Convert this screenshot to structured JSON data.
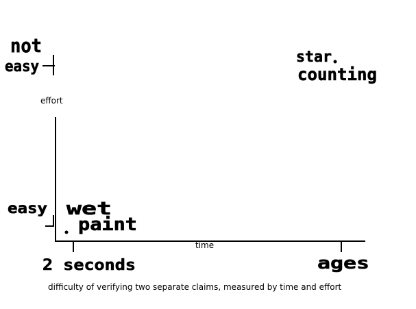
{
  "chart_data": {
    "type": "scatter",
    "title": "",
    "caption": "difficulty of verifying two separate claims, measured by time and effort",
    "xlabel": "time",
    "ylabel": "effort",
    "x_ticks": [
      {
        "value": 0,
        "label": "2 seconds"
      },
      {
        "value": 1,
        "label": "ages"
      }
    ],
    "y_ticks": [
      {
        "value": 0,
        "label": "easy"
      },
      {
        "value": 1,
        "label_lines": [
          "not",
          "easy"
        ]
      }
    ],
    "xlim": [
      0,
      1
    ],
    "ylim": [
      0,
      1
    ],
    "grid": false,
    "points": [
      {
        "x": 0,
        "y": 0,
        "label_lines": [
          "wet",
          "paint"
        ]
      },
      {
        "x": 1,
        "y": 1,
        "label_lines": [
          "star",
          "counting"
        ]
      }
    ],
    "colors": {
      "ink": "#000000",
      "background": "#ffffff"
    }
  }
}
